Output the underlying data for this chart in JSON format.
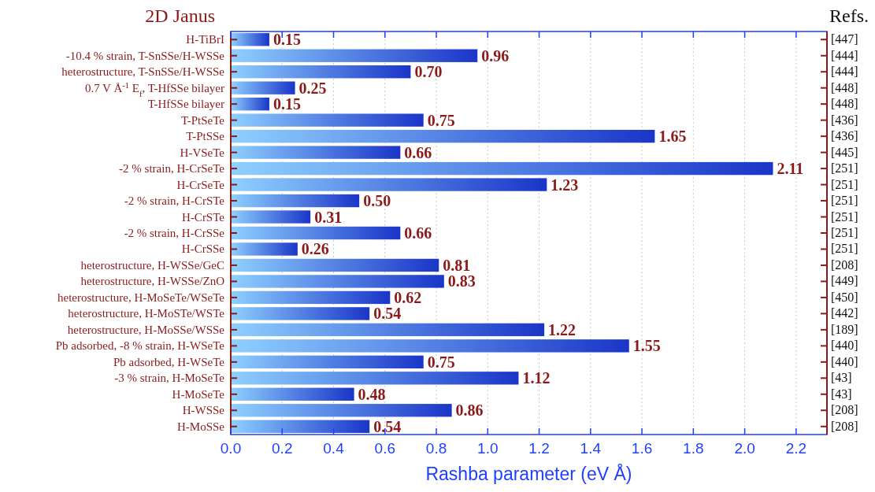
{
  "chart_data": {
    "type": "bar",
    "orientation": "horizontal",
    "title": "2D Janus",
    "xlabel": "Rashba parameter (eV Å)",
    "y2label": "Refs.",
    "categories": [
      "H-TiBrI",
      "-10.4 % strain, T-SnSSe/H-WSSe",
      "heterostructure, T-SnSSe/H-WSSe",
      "0.7 V Å$^{-1}$ E$_{f}$, T-HfSSe bilayer",
      "T-HfSSe bilayer",
      "T-PtSeTe",
      "T-PtSSe",
      "H-VSeTe",
      "-2 % strain, H-CrSeTe",
      "H-CrSeTe",
      "-2 % strain, H-CrSTe",
      "H-CrSTe",
      "-2 % strain, H-CrSSe",
      "H-CrSSe",
      "heterostructure, H-WSSe/GeC",
      "heterostructure, H-WSSe/ZnO",
      "heterostructure, H-MoSeTe/WSeTe",
      "heterostructure, H-MoSTe/WSTe",
      "heterostructure, H-MoSSe/WSSe",
      "Pb adsorbed, -8 % strain, H-WSeTe",
      "Pb adsorbed, H-WSeTe",
      "-3 % strain, H-MoSeTe",
      "H-MoSeTe",
      "H-WSSe",
      "H-MoSSe"
    ],
    "y2_categories": [
      "[447]",
      "[444]",
      "[444]",
      "[448]",
      "[448]",
      "[436]",
      "[436]",
      "[445]",
      "[251]",
      "[251]",
      "[251]",
      "[251]",
      "[251]",
      "[251]",
      "[208]",
      "[449]",
      "[450]",
      "[442]",
      "[189]",
      "[440]",
      "[440]",
      "[43]",
      "[43]",
      "[208]",
      "[208]"
    ],
    "values": [
      0.15,
      0.96,
      0.7,
      0.25,
      0.15,
      0.75,
      1.65,
      0.66,
      2.11,
      1.23,
      0.5,
      0.31,
      0.66,
      0.26,
      0.81,
      0.83,
      0.62,
      0.54,
      1.22,
      1.55,
      0.75,
      1.12,
      0.48,
      0.86,
      0.54
    ],
    "color": "#1a35c8",
    "value_labels": [
      "0.15",
      "0.96",
      "0.70",
      "0.25",
      "0.15",
      "0.75",
      "1.65",
      "0.66",
      "2.11",
      "1.23",
      "0.50",
      "0.31",
      "0.66",
      "0.26",
      "0.81",
      "0.83",
      "0.62",
      "0.54",
      "1.22",
      "1.55",
      "0.75",
      "1.12",
      "0.48",
      "0.86",
      "0.54"
    ],
    "xlim": [
      0,
      2.32
    ],
    "xticks": [
      {
        "value": 0,
        "label": "0.0"
      },
      0.2,
      0.4,
      0.6,
      0.8,
      {
        "value": 1,
        "label": "1.0"
      },
      1.2,
      1.4,
      1.6,
      1.8,
      {
        "value": 2,
        "label": "2.0"
      },
      2.2
    ],
    "grid": "x"
  }
}
